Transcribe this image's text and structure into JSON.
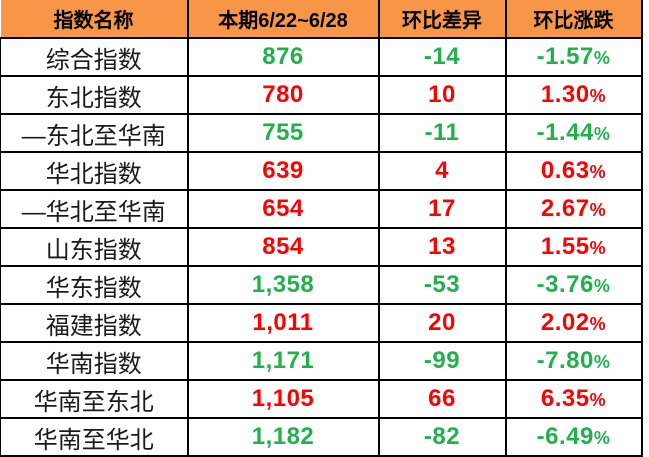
{
  "colors": {
    "header_bg": "#F79646",
    "up_red": "#FF0000",
    "down_green": "#21B14C",
    "border": "#000000",
    "name_text": "#1A1A1A"
  },
  "table": {
    "percent_sign": "%",
    "columns": [
      "指数名称",
      "本期6/22~6/28",
      "环比差异",
      "环比涨跌"
    ],
    "rows": [
      {
        "name": "综合指数",
        "current": "876",
        "diff": "-14",
        "pct": "-1.57",
        "trend": "down"
      },
      {
        "name": "东北指数",
        "current": "780",
        "diff": "10",
        "pct": "1.30",
        "trend": "up"
      },
      {
        "name": "—东北至华南",
        "current": "755",
        "diff": "-11",
        "pct": "-1.44",
        "trend": "down"
      },
      {
        "name": "华北指数",
        "current": "639",
        "diff": "4",
        "pct": "0.63",
        "trend": "up"
      },
      {
        "name": "—华北至华南",
        "current": "654",
        "diff": "17",
        "pct": "2.67",
        "trend": "up"
      },
      {
        "name": "山东指数",
        "current": "854",
        "diff": "13",
        "pct": "1.55",
        "trend": "up"
      },
      {
        "name": "华东指数",
        "current": "1,358",
        "diff": "-53",
        "pct": "-3.76",
        "trend": "down"
      },
      {
        "name": "福建指数",
        "current": "1,011",
        "diff": "20",
        "pct": "2.02",
        "trend": "up"
      },
      {
        "name": "华南指数",
        "current": "1,171",
        "diff": "-99",
        "pct": "-7.80",
        "trend": "down"
      },
      {
        "name": "华南至东北",
        "current": "1,105",
        "diff": "66",
        "pct": "6.35",
        "trend": "up"
      },
      {
        "name": "华南至华北",
        "current": "1,182",
        "diff": "-82",
        "pct": "-6.49",
        "trend": "down"
      }
    ]
  },
  "chart_data": {
    "type": "table",
    "title": "",
    "columns": [
      "指数名称",
      "本期6/22~6/28",
      "环比差异",
      "环比涨跌"
    ],
    "rows": [
      [
        "综合指数",
        876,
        -14,
        "-1.57%"
      ],
      [
        "东北指数",
        780,
        10,
        "1.30%"
      ],
      [
        "—东北至华南",
        755,
        -11,
        "-1.44%"
      ],
      [
        "华北指数",
        639,
        4,
        "0.63%"
      ],
      [
        "—华北至华南",
        654,
        17,
        "2.67%"
      ],
      [
        "山东指数",
        854,
        13,
        "1.55%"
      ],
      [
        "华东指数",
        1358,
        -53,
        "-3.76%"
      ],
      [
        "福建指数",
        1011,
        20,
        "2.02%"
      ],
      [
        "华南指数",
        1171,
        -99,
        "-7.80%"
      ],
      [
        "华南至东北",
        1105,
        66,
        "6.35%"
      ],
      [
        "华南至华北",
        1182,
        -82,
        "-6.49%"
      ]
    ],
    "legend": "red = week-over-week increase, green = week-over-week decrease",
    "grid": true
  }
}
